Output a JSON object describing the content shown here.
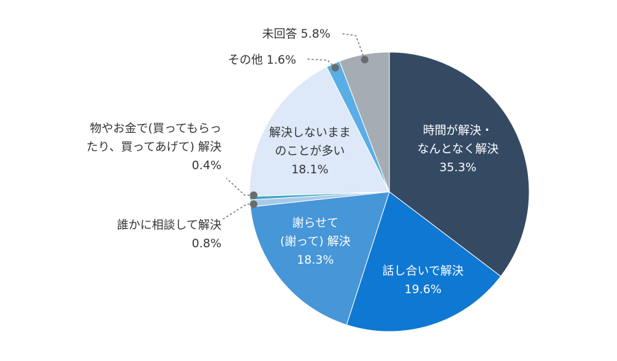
{
  "chart_data": {
    "type": "pie",
    "start_angle_deg": 0,
    "direction": "clockwise",
    "slices": [
      {
        "name": "時間が解決・なんとなく解決",
        "value": 35.3,
        "color": "#344a63",
        "label_lines": [
          "時間が解決・",
          "なんとなく解決",
          "35.3%"
        ],
        "label_position": "inside"
      },
      {
        "name": "話し合いで解決",
        "value": 19.6,
        "color": "#0f78d2",
        "label_lines": [
          "話し合いで解決",
          "19.6%"
        ],
        "label_position": "inside"
      },
      {
        "name": "謝らせて(謝って)解決",
        "value": 18.3,
        "color": "#4696d8",
        "label_lines": [
          "謝らせて",
          "(謝って) 解決",
          "18.3%"
        ],
        "label_position": "inside"
      },
      {
        "name": "誰かに相談して解決",
        "value": 0.8,
        "color": "#a9c9ea",
        "label_lines": [
          "誰かに相談して解決",
          "0.8%"
        ],
        "label_position": "outside-left"
      },
      {
        "name": "物やお金で(買ってもらったり、買ってあげて)解決",
        "value": 0.4,
        "color": "#3fa9c3",
        "label_lines": [
          "物やお金で(買ってもらっ",
          "たり、買ってあげて) 解決",
          "0.4%"
        ],
        "label_position": "outside-left"
      },
      {
        "name": "解決しないままのことが多い",
        "value": 18.1,
        "color": "#dde8f8",
        "label_lines": [
          "解決しないまま",
          "のことが多い",
          "18.1%"
        ],
        "label_position": "inside"
      },
      {
        "name": "その他",
        "value": 1.6,
        "color": "#5aaee6",
        "label_lines": [
          "その他 1.6%"
        ],
        "label_position": "outside-top"
      },
      {
        "name": "未回答",
        "value": 5.8,
        "color": "#a6acb4",
        "label_lines": [
          "未回答  5.8%"
        ],
        "label_position": "outside-top"
      }
    ]
  }
}
